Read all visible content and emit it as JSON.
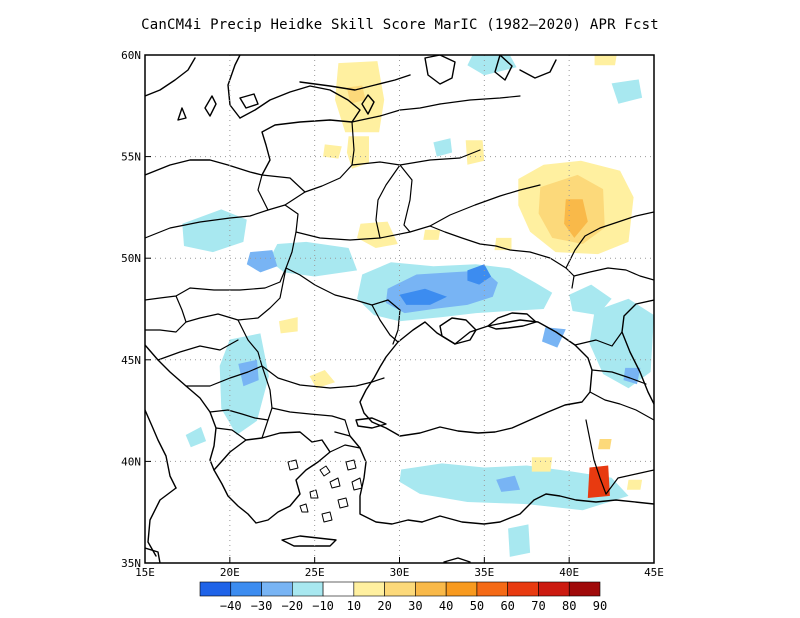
{
  "title": "CanCM4i Precip Heidke Skill Score MarIC (1982–2020) APR Fcst",
  "map": {
    "lon_range": [
      15,
      45
    ],
    "lat_range": [
      35,
      60
    ],
    "x_ticks": [
      "15E",
      "20E",
      "25E",
      "30E",
      "35E",
      "40E",
      "45E"
    ],
    "y_ticks": [
      "35N",
      "40N",
      "45N",
      "50N",
      "55N",
      "60N"
    ],
    "grid": "dotted, every 5 degrees",
    "ocean_color": "#ffffff",
    "land_color": "#ffffff",
    "boundary_color": "#000000"
  },
  "colorbar": {
    "labels": [
      "−40",
      "−30",
      "−20",
      "−10",
      "10",
      "20",
      "30",
      "40",
      "50",
      "60",
      "70",
      "80",
      "90"
    ],
    "colors": [
      "#1f63e8",
      "#3c8cf0",
      "#78b4f4",
      "#a8e8f0",
      "#ffffff",
      "#fff0a0",
      "#fcd97a",
      "#f9b949",
      "#f89a1f",
      "#f56a16",
      "#e83a10",
      "#cc1a10",
      "#a00a0a"
    ]
  },
  "anomalies": [
    {
      "color": "#a8e8f0",
      "pts": [
        [
          27.8,
          49.2
        ],
        [
          29.5,
          49.8
        ],
        [
          32,
          49.6
        ],
        [
          34.5,
          49.7
        ],
        [
          36.5,
          49.5
        ],
        [
          38,
          48.8
        ],
        [
          39,
          48.3
        ],
        [
          38.5,
          47.5
        ],
        [
          36.5,
          47.4
        ],
        [
          34.5,
          47.3
        ],
        [
          32.5,
          47.1
        ],
        [
          30,
          46.9
        ],
        [
          28.5,
          47.2
        ],
        [
          27.5,
          48
        ]
      ]
    },
    {
      "color": "#78b4f4",
      "pts": [
        [
          29.3,
          48.5
        ],
        [
          31,
          49.2
        ],
        [
          33,
          49.3
        ],
        [
          35,
          49.4
        ],
        [
          35.8,
          48.8
        ],
        [
          35.5,
          48.1
        ],
        [
          34,
          47.7
        ],
        [
          32,
          47.5
        ],
        [
          30.3,
          47.3
        ],
        [
          29.2,
          47.8
        ]
      ]
    },
    {
      "color": "#3c8cf0",
      "pts": [
        [
          30,
          48.2
        ],
        [
          31.5,
          48.5
        ],
        [
          32.8,
          48.1
        ],
        [
          31.8,
          47.7
        ],
        [
          30.4,
          47.7
        ]
      ]
    },
    {
      "color": "#3c8cf0",
      "pts": [
        [
          34,
          49.4
        ],
        [
          35,
          49.7
        ],
        [
          35.4,
          49.1
        ],
        [
          34.7,
          48.7
        ],
        [
          34,
          48.9
        ]
      ]
    },
    {
      "color": "#a8e8f0",
      "pts": [
        [
          22.8,
          50.7
        ],
        [
          24.5,
          50.8
        ],
        [
          27,
          50.5
        ],
        [
          27.5,
          49.4
        ],
        [
          25,
          49.1
        ],
        [
          23.2,
          49.3
        ],
        [
          22.3,
          49.9
        ]
      ]
    },
    {
      "color": "#78b4f4",
      "pts": [
        [
          21.2,
          50.3
        ],
        [
          22.5,
          50.4
        ],
        [
          22.8,
          49.6
        ],
        [
          21.8,
          49.3
        ],
        [
          21,
          49.7
        ]
      ]
    },
    {
      "color": "#a8e8f0",
      "pts": [
        [
          17.2,
          51.7
        ],
        [
          19.5,
          52.4
        ],
        [
          21,
          51.9
        ],
        [
          20.8,
          50.8
        ],
        [
          19,
          50.3
        ],
        [
          17.3,
          50.6
        ]
      ]
    },
    {
      "color": "#a8e8f0",
      "pts": [
        [
          40,
          48.2
        ],
        [
          41.3,
          48.7
        ],
        [
          42.5,
          48
        ],
        [
          41.7,
          47.2
        ],
        [
          40.2,
          47.4
        ]
      ]
    },
    {
      "color": "#a8e8f0",
      "pts": [
        [
          41.5,
          47.4
        ],
        [
          43.5,
          48
        ],
        [
          45,
          47.2
        ],
        [
          44.8,
          44.4
        ],
        [
          43.5,
          43.6
        ],
        [
          42,
          44.3
        ],
        [
          41.2,
          45.8
        ]
      ]
    },
    {
      "color": "#78b4f4",
      "pts": [
        [
          38.6,
          46.6
        ],
        [
          39.8,
          46.5
        ],
        [
          39.3,
          45.6
        ],
        [
          38.4,
          45.9
        ]
      ]
    },
    {
      "color": "#78b4f4",
      "pts": [
        [
          43.3,
          44.6
        ],
        [
          44.2,
          44.6
        ],
        [
          44,
          43.8
        ],
        [
          43.2,
          44
        ]
      ]
    },
    {
      "color": "#a8e8f0",
      "pts": [
        [
          20,
          46
        ],
        [
          21.8,
          46.3
        ],
        [
          22.3,
          44.2
        ],
        [
          21.6,
          42
        ],
        [
          20.4,
          41.3
        ],
        [
          19.5,
          42.6
        ],
        [
          19.4,
          44.7
        ]
      ]
    },
    {
      "color": "#78b4f4",
      "pts": [
        [
          20.5,
          44.8
        ],
        [
          21.6,
          45
        ],
        [
          21.7,
          44
        ],
        [
          20.8,
          43.7
        ]
      ]
    },
    {
      "color": "#a8e8f0",
      "pts": [
        [
          30.1,
          39.6
        ],
        [
          32.5,
          39.9
        ],
        [
          35,
          39.7
        ],
        [
          37.5,
          39.8
        ],
        [
          40.2,
          39.5
        ],
        [
          42.5,
          39.2
        ],
        [
          43.5,
          38.3
        ],
        [
          40.8,
          37.6
        ],
        [
          37.5,
          37.9
        ],
        [
          34,
          38
        ],
        [
          31.2,
          38.4
        ],
        [
          30,
          39
        ]
      ]
    },
    {
      "color": "#78b4f4",
      "pts": [
        [
          35.7,
          39.1
        ],
        [
          36.8,
          39.3
        ],
        [
          37.1,
          38.6
        ],
        [
          36,
          38.5
        ]
      ]
    },
    {
      "color": "#a8e8f0",
      "pts": [
        [
          36.4,
          36.7
        ],
        [
          37.6,
          36.9
        ],
        [
          37.7,
          35.5
        ],
        [
          36.5,
          35.3
        ]
      ]
    },
    {
      "color": "#a8e8f0",
      "pts": [
        [
          27.3,
          57.6
        ],
        [
          28.5,
          58.1
        ],
        [
          28.9,
          57.3
        ],
        [
          27.7,
          56.9
        ]
      ]
    },
    {
      "color": "#a8e8f0",
      "pts": [
        [
          34.3,
          60
        ],
        [
          36.5,
          60
        ],
        [
          36.9,
          59.4
        ],
        [
          35,
          59
        ],
        [
          34,
          59.5
        ]
      ]
    },
    {
      "color": "#a8e8f0",
      "pts": [
        [
          42.5,
          58.6
        ],
        [
          44.1,
          58.8
        ],
        [
          44.3,
          57.9
        ],
        [
          42.9,
          57.6
        ]
      ]
    },
    {
      "color": "#a8e8f0",
      "pts": [
        [
          32,
          55.7
        ],
        [
          33,
          55.9
        ],
        [
          33.1,
          55.2
        ],
        [
          32.2,
          55
        ]
      ]
    },
    {
      "color": "#a8e8f0",
      "pts": [
        [
          17.4,
          41.3
        ],
        [
          18.3,
          41.7
        ],
        [
          18.6,
          41
        ],
        [
          17.7,
          40.7
        ]
      ]
    },
    {
      "color": "#fff0a0",
      "pts": [
        [
          37,
          53.9
        ],
        [
          38.5,
          54.6
        ],
        [
          40.7,
          54.8
        ],
        [
          43,
          54.3
        ],
        [
          43.8,
          53
        ],
        [
          43.5,
          50.8
        ],
        [
          41.7,
          50.2
        ],
        [
          39.2,
          50.3
        ],
        [
          37.7,
          51.3
        ],
        [
          37,
          52.6
        ]
      ]
    },
    {
      "color": "#fcd97a",
      "pts": [
        [
          38.3,
          53.5
        ],
        [
          40.5,
          54.1
        ],
        [
          42,
          53.4
        ],
        [
          42.1,
          51.5
        ],
        [
          40.8,
          50.7
        ],
        [
          39,
          51
        ],
        [
          38.2,
          52.2
        ]
      ]
    },
    {
      "color": "#f9b949",
      "pts": [
        [
          39.8,
          52.9
        ],
        [
          40.8,
          52.9
        ],
        [
          41.1,
          51.8
        ],
        [
          40.3,
          51
        ],
        [
          39.7,
          51.7
        ]
      ]
    },
    {
      "color": "#fff0a0",
      "pts": [
        [
          26.4,
          59.6
        ],
        [
          28.7,
          59.7
        ],
        [
          29.1,
          57.8
        ],
        [
          28.8,
          56.2
        ],
        [
          26.8,
          56.2
        ],
        [
          26.2,
          57.8
        ]
      ]
    },
    {
      "color": "#fcd97a",
      "pts": [
        [
          26.9,
          58.4
        ],
        [
          27.8,
          58.5
        ],
        [
          28,
          57.8
        ],
        [
          27.1,
          57.6
        ]
      ]
    },
    {
      "color": "#fff0a0",
      "pts": [
        [
          27,
          56
        ],
        [
          28.2,
          56
        ],
        [
          28.2,
          54.7
        ],
        [
          27.2,
          54.4
        ],
        [
          26.9,
          55.2
        ]
      ]
    },
    {
      "color": "#fff0a0",
      "pts": [
        [
          25.6,
          55.6
        ],
        [
          26.6,
          55.5
        ],
        [
          26.4,
          54.9
        ],
        [
          25.5,
          55
        ]
      ]
    },
    {
      "color": "#fff0a0",
      "pts": [
        [
          33.9,
          55.8
        ],
        [
          34.9,
          55.8
        ],
        [
          35,
          54.8
        ],
        [
          34,
          54.6
        ]
      ]
    },
    {
      "color": "#fff0a0",
      "pts": [
        [
          27.7,
          51.7
        ],
        [
          29.3,
          51.8
        ],
        [
          29.9,
          50.7
        ],
        [
          28.6,
          50.5
        ],
        [
          27.5,
          51
        ]
      ]
    },
    {
      "color": "#fff0a0",
      "pts": [
        [
          24.7,
          44.2
        ],
        [
          25.6,
          44.5
        ],
        [
          26.2,
          43.9
        ],
        [
          25.1,
          43.6
        ]
      ]
    },
    {
      "color": "#fff0a0",
      "pts": [
        [
          22.9,
          46.9
        ],
        [
          24,
          47.1
        ],
        [
          24,
          46.4
        ],
        [
          23,
          46.3
        ]
      ]
    },
    {
      "color": "#fff0a0",
      "pts": [
        [
          31.5,
          51.4
        ],
        [
          32.4,
          51.4
        ],
        [
          32.3,
          50.9
        ],
        [
          31.4,
          50.9
        ]
      ]
    },
    {
      "color": "#fff0a0",
      "pts": [
        [
          35.7,
          51
        ],
        [
          36.6,
          51
        ],
        [
          36.6,
          50.4
        ],
        [
          35.6,
          50.4
        ]
      ]
    },
    {
      "color": "#fff0a0",
      "pts": [
        [
          37.8,
          40.2
        ],
        [
          39,
          40.2
        ],
        [
          38.9,
          39.5
        ],
        [
          37.8,
          39.5
        ]
      ]
    },
    {
      "color": "#fff0a0",
      "pts": [
        [
          43.5,
          39.1
        ],
        [
          44.3,
          39.1
        ],
        [
          44.2,
          38.6
        ],
        [
          43.4,
          38.6
        ]
      ]
    },
    {
      "color": "#fcd97a",
      "pts": [
        [
          41.8,
          41.1
        ],
        [
          42.5,
          41.1
        ],
        [
          42.4,
          40.6
        ],
        [
          41.7,
          40.6
        ]
      ]
    },
    {
      "color": "#e83a10",
      "pts": [
        [
          41.2,
          39.7
        ],
        [
          42.3,
          39.8
        ],
        [
          42.4,
          38.3
        ],
        [
          41.1,
          38.2
        ]
      ]
    },
    {
      "color": "#fff0a0",
      "pts": [
        [
          41.5,
          60
        ],
        [
          42.8,
          60
        ],
        [
          42.7,
          59.5
        ],
        [
          41.5,
          59.5
        ]
      ]
    }
  ]
}
